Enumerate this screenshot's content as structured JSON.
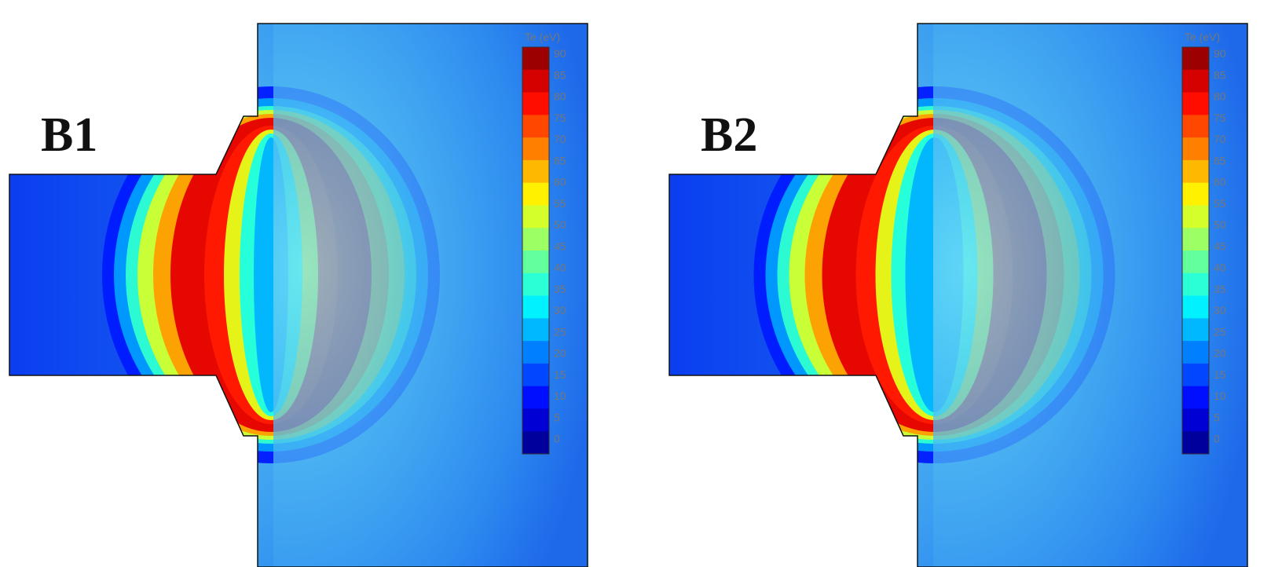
{
  "panels": [
    {
      "label": "B1",
      "colorbar": {
        "title": "Te (eV)",
        "ticks": [
          90,
          85,
          80,
          75,
          70,
          65,
          60,
          55,
          50,
          45,
          40,
          35,
          30,
          25,
          20,
          15,
          10,
          5,
          0
        ]
      }
    },
    {
      "label": "B2",
      "colorbar": {
        "title": "Te (eV)",
        "ticks": [
          90,
          85,
          80,
          75,
          70,
          65,
          60,
          55,
          50,
          45,
          40,
          35,
          30,
          25,
          20,
          15,
          10,
          5,
          0
        ]
      }
    }
  ]
}
